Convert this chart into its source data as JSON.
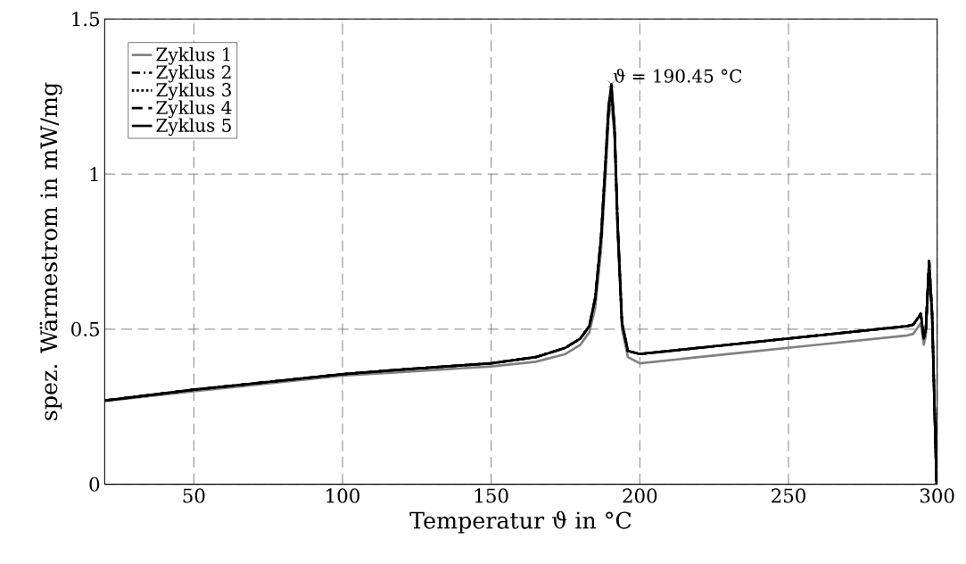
{
  "chart_data": {
    "type": "line",
    "xlabel": "Temperatur ϑ in °C",
    "ylabel": "spez. Wärmestrom in mW/mg",
    "x": [
      20,
      50,
      80,
      100,
      120,
      150,
      165,
      175,
      180,
      183,
      185,
      187,
      188.5,
      189.5,
      190.45,
      191.5,
      192.5,
      194,
      196,
      200,
      230,
      260,
      290,
      292,
      294.5,
      295.5,
      296.2,
      297.3,
      298.3,
      299.8
    ],
    "series": [
      {
        "name": "Zyklus 1",
        "color": "#808080",
        "line_style": "solid",
        "values": [
          0.268,
          0.3,
          0.33,
          0.35,
          0.362,
          0.38,
          0.395,
          0.42,
          0.45,
          0.49,
          0.57,
          0.76,
          1.0,
          1.18,
          1.24,
          1.12,
          0.82,
          0.5,
          0.41,
          0.39,
          0.42,
          0.45,
          0.48,
          0.485,
          0.52,
          0.45,
          0.48,
          0.7,
          0.54,
          0.0
        ]
      },
      {
        "name": "Zyklus 2",
        "color": "#000000",
        "line_style": "dashdot",
        "values": [
          0.27,
          0.305,
          0.335,
          0.355,
          0.37,
          0.39,
          0.41,
          0.44,
          0.47,
          0.51,
          0.6,
          0.8,
          1.04,
          1.21,
          1.27,
          1.14,
          0.84,
          0.52,
          0.43,
          0.42,
          0.45,
          0.48,
          0.51,
          0.515,
          0.55,
          0.47,
          0.5,
          0.72,
          0.55,
          0.0
        ]
      },
      {
        "name": "Zyklus 3",
        "color": "#000000",
        "line_style": "dotted",
        "values": [
          0.27,
          0.305,
          0.335,
          0.355,
          0.37,
          0.39,
          0.41,
          0.44,
          0.47,
          0.51,
          0.6,
          0.8,
          1.04,
          1.21,
          1.27,
          1.14,
          0.84,
          0.52,
          0.43,
          0.42,
          0.45,
          0.48,
          0.51,
          0.515,
          0.55,
          0.47,
          0.5,
          0.72,
          0.55,
          0.0
        ]
      },
      {
        "name": "Zyklus 4",
        "color": "#000000",
        "line_style": "dashed",
        "values": [
          0.27,
          0.305,
          0.335,
          0.355,
          0.37,
          0.39,
          0.41,
          0.44,
          0.47,
          0.51,
          0.6,
          0.8,
          1.05,
          1.22,
          1.28,
          1.15,
          0.85,
          0.52,
          0.43,
          0.42,
          0.45,
          0.48,
          0.51,
          0.515,
          0.55,
          0.47,
          0.5,
          0.72,
          0.55,
          0.0
        ]
      },
      {
        "name": "Zyklus 5",
        "color": "#000000",
        "line_style": "solid",
        "values": [
          0.27,
          0.305,
          0.335,
          0.355,
          0.37,
          0.39,
          0.41,
          0.44,
          0.47,
          0.51,
          0.6,
          0.8,
          1.05,
          1.22,
          1.29,
          1.15,
          0.85,
          0.52,
          0.43,
          0.42,
          0.45,
          0.48,
          0.51,
          0.515,
          0.55,
          0.47,
          0.5,
          0.72,
          0.55,
          0.0
        ]
      }
    ],
    "annotations": [
      {
        "text": "ϑ = 190.45 °C",
        "x": 190.45,
        "y": 1.29
      }
    ],
    "xlim": [
      20,
      300
    ],
    "xticks": [
      50,
      100,
      150,
      200,
      250,
      300
    ],
    "ylim": [
      0,
      1.5
    ],
    "yticks": [
      0,
      0.5,
      1,
      1.5
    ],
    "grid": true,
    "legend": "top left"
  }
}
